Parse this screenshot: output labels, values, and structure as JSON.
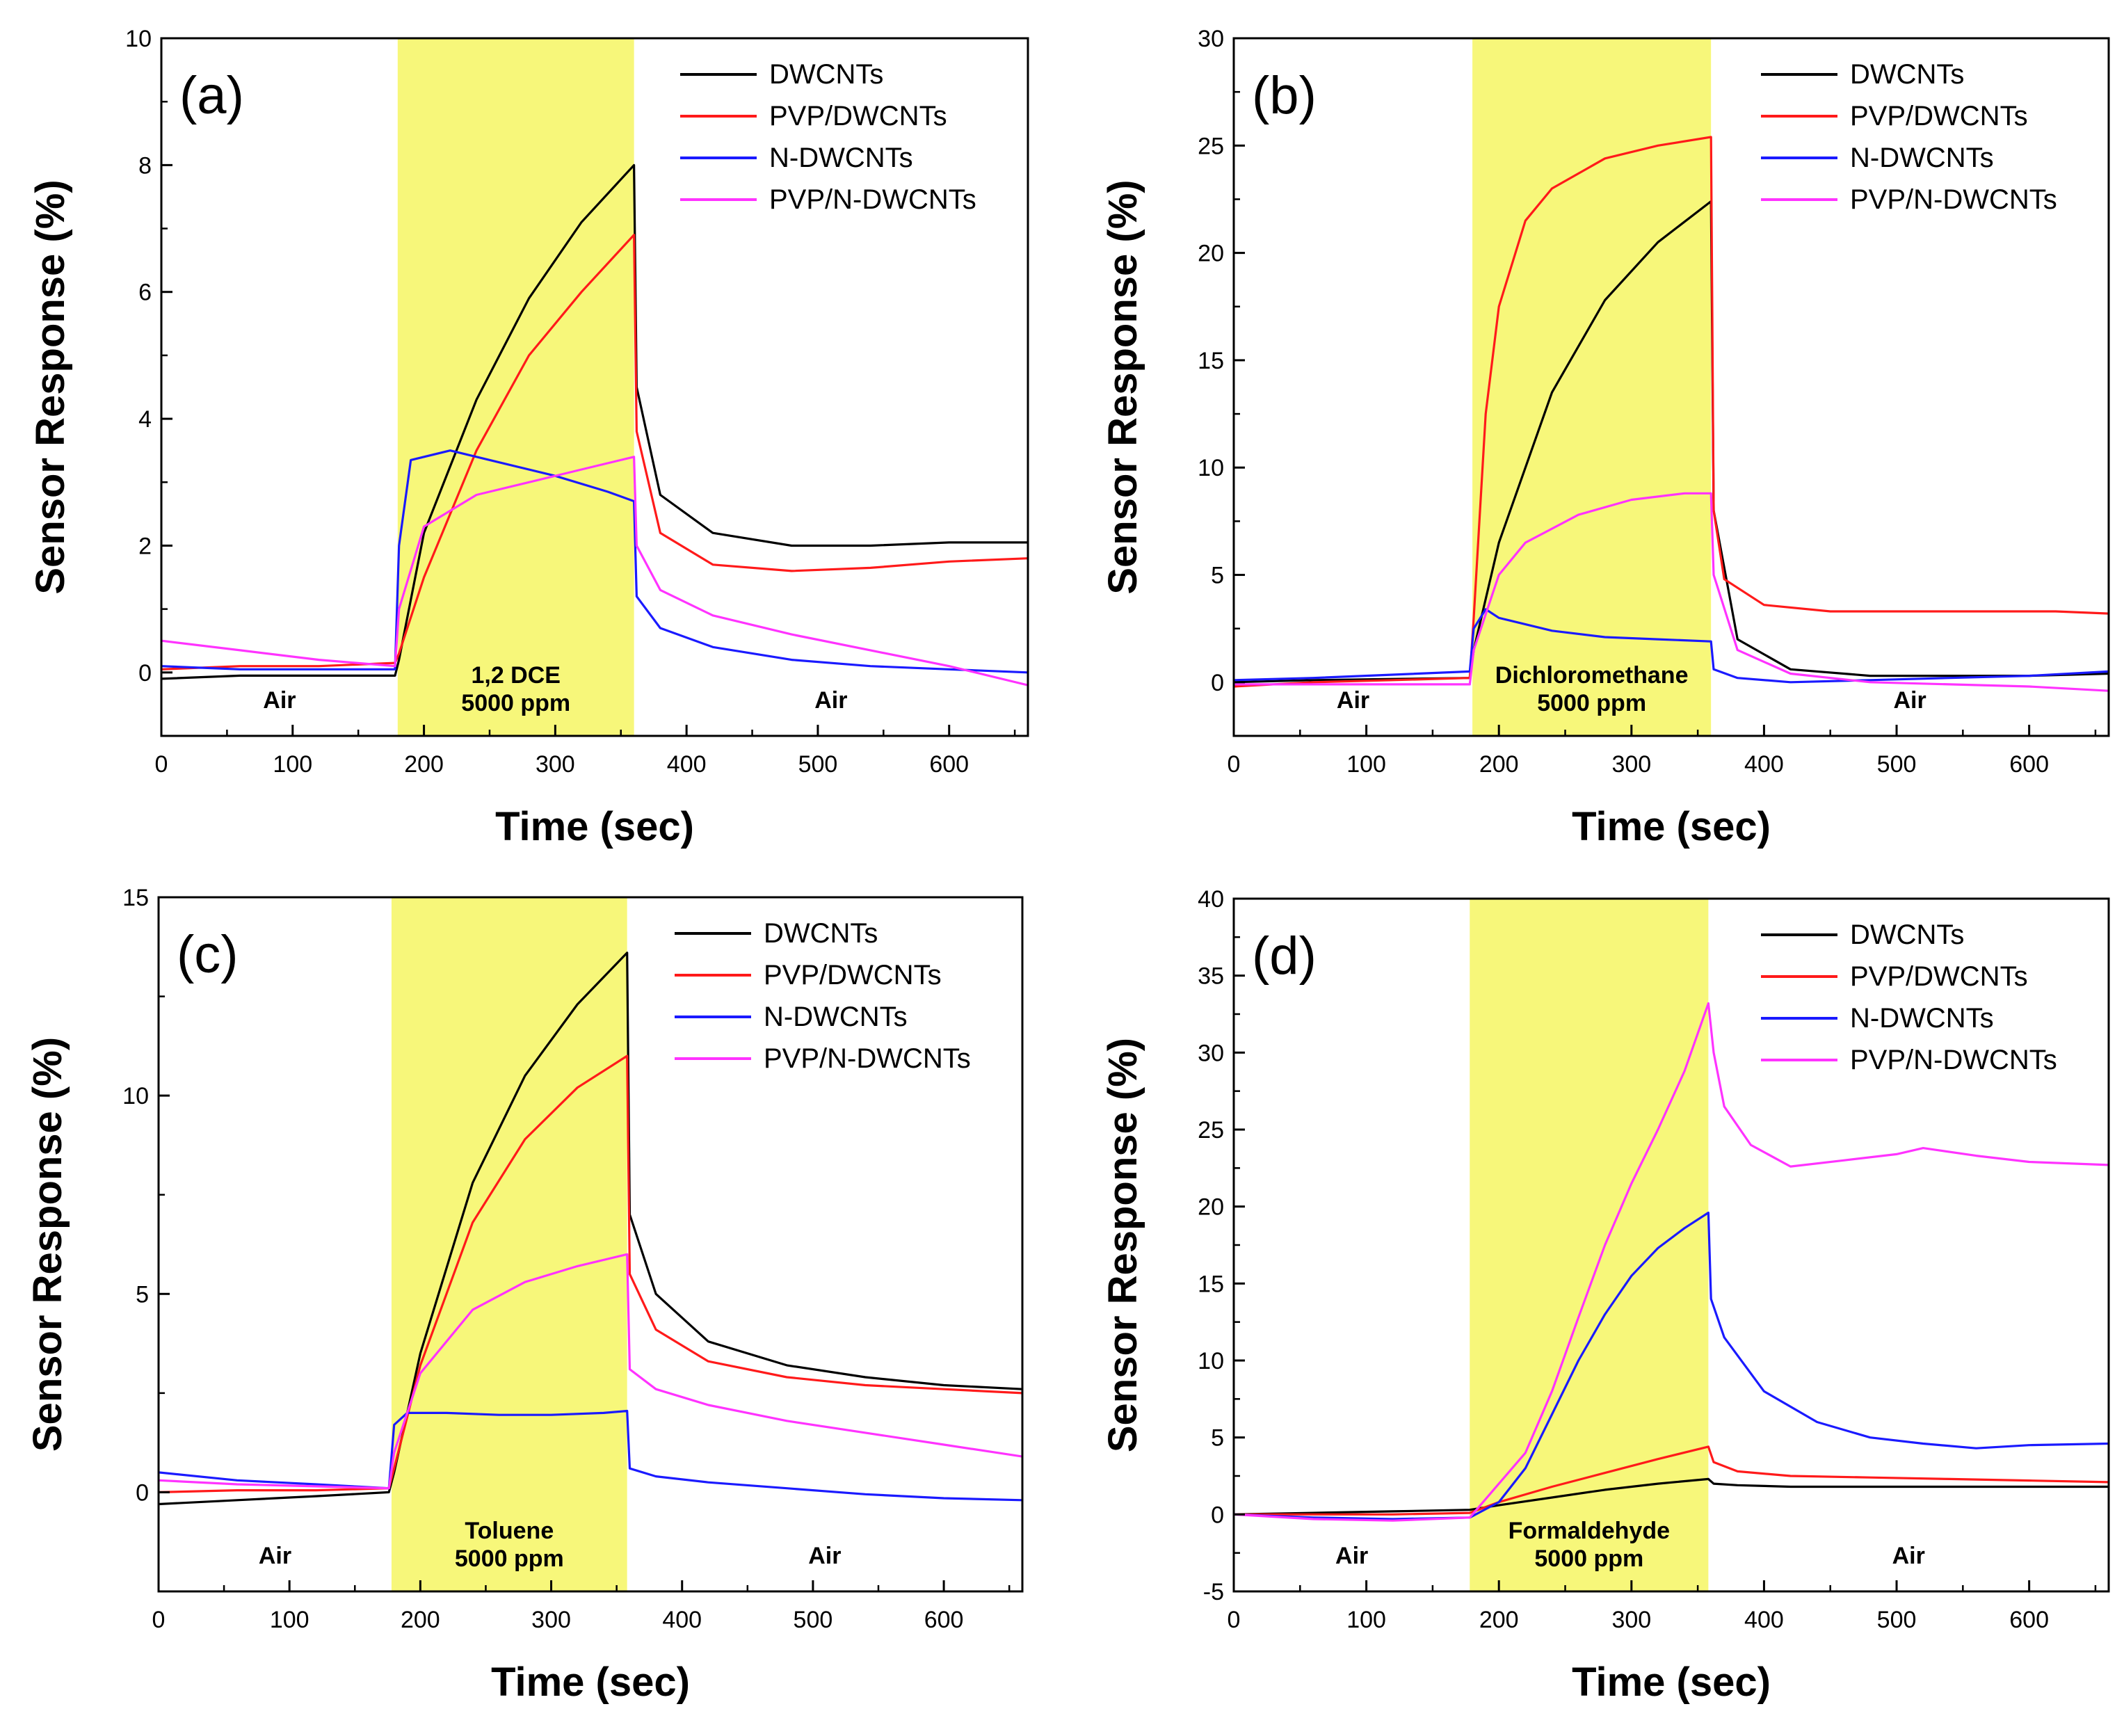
{
  "figure": {
    "common": {
      "xlabel": "Time (sec)",
      "ylabel": "Sensor Response (%)",
      "legend_position": "top-right",
      "colors": {
        "DWCNTs": "#000000",
        "PVP/DWCNTs": "#ff1a1a",
        "N-DWCNTs": "#1a1aff",
        "PVP/N-DWCNTs": "#ff33ff",
        "exposure": "#f7f77a"
      },
      "air_label": "Air"
    }
  },
  "chart_data": [
    {
      "panel": "(a)",
      "type": "line",
      "xlim": [
        0,
        660
      ],
      "ylim": [
        -1,
        10
      ],
      "xticks": [
        0,
        100,
        200,
        300,
        400,
        500,
        600
      ],
      "yticks": [
        0,
        2,
        4,
        6,
        8,
        10
      ],
      "exposure": {
        "start": 180,
        "end": 360,
        "line1": "1,2 DCE",
        "line2": "5000 ppm"
      },
      "series": [
        {
          "name": "DWCNTs",
          "x": [
            0,
            60,
            120,
            178,
            181,
            200,
            240,
            280,
            320,
            360,
            362,
            380,
            420,
            480,
            540,
            600,
            660
          ],
          "y": [
            -0.1,
            -0.05,
            -0.05,
            -0.05,
            0.2,
            2.2,
            4.3,
            5.9,
            7.1,
            8.0,
            4.5,
            2.8,
            2.2,
            2.0,
            2.0,
            2.05,
            2.05
          ]
        },
        {
          "name": "PVP/DWCNTs",
          "x": [
            0,
            60,
            120,
            178,
            181,
            200,
            240,
            280,
            320,
            360,
            362,
            380,
            420,
            480,
            540,
            600,
            660
          ],
          "y": [
            0.05,
            0.1,
            0.1,
            0.15,
            0.3,
            1.5,
            3.5,
            5.0,
            6.0,
            6.9,
            3.8,
            2.2,
            1.7,
            1.6,
            1.65,
            1.75,
            1.8
          ]
        },
        {
          "name": "N-DWCNTs",
          "x": [
            0,
            60,
            120,
            178,
            181,
            190,
            220,
            260,
            300,
            340,
            360,
            362,
            380,
            420,
            480,
            540,
            600,
            660
          ],
          "y": [
            0.1,
            0.05,
            0.05,
            0.05,
            2.0,
            3.35,
            3.5,
            3.3,
            3.1,
            2.85,
            2.7,
            1.2,
            0.7,
            0.4,
            0.2,
            0.1,
            0.05,
            0.0
          ]
        },
        {
          "name": "PVP/N-DWCNTs",
          "x": [
            0,
            60,
            120,
            178,
            181,
            200,
            240,
            280,
            320,
            360,
            362,
            380,
            420,
            480,
            540,
            600,
            660
          ],
          "y": [
            0.5,
            0.35,
            0.2,
            0.1,
            1.0,
            2.3,
            2.8,
            3.0,
            3.2,
            3.4,
            2.0,
            1.3,
            0.9,
            0.6,
            0.35,
            0.1,
            -0.2
          ]
        }
      ]
    },
    {
      "panel": "(b)",
      "type": "line",
      "xlim": [
        0,
        660
      ],
      "ylim": [
        -2.5,
        30
      ],
      "xticks": [
        0,
        100,
        200,
        300,
        400,
        500,
        600
      ],
      "yticks": [
        0,
        5,
        10,
        15,
        20,
        25,
        30
      ],
      "exposure": {
        "start": 180,
        "end": 360,
        "line1": "Dichloromethane",
        "line2": "5000 ppm"
      },
      "series": [
        {
          "name": "DWCNTs",
          "x": [
            0,
            60,
            120,
            178,
            181,
            200,
            240,
            280,
            320,
            360,
            362,
            380,
            420,
            480,
            540,
            600,
            660
          ],
          "y": [
            0.0,
            0.1,
            0.15,
            0.2,
            1.5,
            6.5,
            13.5,
            17.8,
            20.5,
            22.4,
            8.0,
            2.0,
            0.6,
            0.3,
            0.3,
            0.3,
            0.4
          ]
        },
        {
          "name": "PVP/DWCNTs",
          "x": [
            0,
            60,
            120,
            178,
            181,
            190,
            200,
            220,
            240,
            280,
            320,
            360,
            362,
            370,
            400,
            450,
            500,
            560,
            620,
            660
          ],
          "y": [
            -0.2,
            0.0,
            0.1,
            0.2,
            3.0,
            12.5,
            17.5,
            21.5,
            23.0,
            24.4,
            25.0,
            25.4,
            8.0,
            4.8,
            3.6,
            3.3,
            3.3,
            3.3,
            3.3,
            3.2
          ]
        },
        {
          "name": "N-DWCNTs",
          "x": [
            0,
            60,
            120,
            178,
            181,
            190,
            200,
            240,
            280,
            320,
            360,
            362,
            380,
            420,
            480,
            540,
            600,
            660
          ],
          "y": [
            0.1,
            0.2,
            0.35,
            0.5,
            2.5,
            3.4,
            3.0,
            2.4,
            2.1,
            2.0,
            1.9,
            0.6,
            0.2,
            0.0,
            0.1,
            0.2,
            0.3,
            0.5
          ]
        },
        {
          "name": "PVP/N-DWCNTs",
          "x": [
            0,
            60,
            120,
            178,
            181,
            200,
            220,
            260,
            300,
            340,
            360,
            362,
            380,
            420,
            480,
            540,
            600,
            660
          ],
          "y": [
            -0.1,
            -0.1,
            -0.1,
            -0.1,
            1.5,
            5.0,
            6.5,
            7.8,
            8.5,
            8.8,
            8.8,
            5.0,
            1.5,
            0.4,
            0.0,
            -0.1,
            -0.2,
            -0.4
          ]
        }
      ]
    },
    {
      "panel": "(c)",
      "type": "line",
      "xlim": [
        0,
        660
      ],
      "ylim": [
        -2.5,
        15
      ],
      "xticks": [
        0,
        100,
        200,
        300,
        400,
        500,
        600
      ],
      "yticks": [
        0,
        5,
        10,
        15
      ],
      "exposure": {
        "start": 178,
        "end": 358,
        "line1": "Toluene",
        "line2": "5000 ppm"
      },
      "series": [
        {
          "name": "DWCNTs",
          "x": [
            0,
            60,
            120,
            176,
            180,
            200,
            240,
            280,
            320,
            358,
            360,
            380,
            420,
            480,
            540,
            600,
            660
          ],
          "y": [
            -0.3,
            -0.2,
            -0.1,
            0.0,
            0.5,
            3.5,
            7.8,
            10.5,
            12.3,
            13.6,
            7.0,
            5.0,
            3.8,
            3.2,
            2.9,
            2.7,
            2.6
          ]
        },
        {
          "name": "PVP/DWCNTs",
          "x": [
            0,
            60,
            120,
            176,
            180,
            200,
            240,
            280,
            320,
            358,
            360,
            380,
            420,
            480,
            540,
            600,
            660
          ],
          "y": [
            0.0,
            0.05,
            0.05,
            0.1,
            0.6,
            3.2,
            6.8,
            8.9,
            10.2,
            11.0,
            5.5,
            4.1,
            3.3,
            2.9,
            2.7,
            2.6,
            2.5
          ]
        },
        {
          "name": "N-DWCNTs",
          "x": [
            0,
            60,
            120,
            176,
            180,
            190,
            220,
            260,
            300,
            340,
            358,
            360,
            380,
            420,
            480,
            540,
            600,
            660
          ],
          "y": [
            0.5,
            0.3,
            0.2,
            0.1,
            1.7,
            2.0,
            2.0,
            1.95,
            1.95,
            2.0,
            2.05,
            0.6,
            0.4,
            0.25,
            0.1,
            -0.05,
            -0.15,
            -0.2
          ]
        },
        {
          "name": "PVP/N-DWCNTs",
          "x": [
            0,
            60,
            120,
            176,
            180,
            200,
            240,
            280,
            320,
            358,
            360,
            380,
            420,
            480,
            540,
            600,
            660
          ],
          "y": [
            0.3,
            0.2,
            0.15,
            0.1,
            1.0,
            3.0,
            4.6,
            5.3,
            5.7,
            6.0,
            3.1,
            2.6,
            2.2,
            1.8,
            1.5,
            1.2,
            0.9
          ]
        }
      ]
    },
    {
      "panel": "(d)",
      "type": "line",
      "xlim": [
        0,
        660
      ],
      "ylim": [
        -5,
        40
      ],
      "xticks": [
        0,
        100,
        200,
        300,
        400,
        500,
        600
      ],
      "yticks": [
        -5,
        0,
        5,
        10,
        15,
        20,
        25,
        30,
        35,
        40
      ],
      "exposure": {
        "start": 178,
        "end": 358,
        "line1": "Formaldehyde",
        "line2": "5000 ppm"
      },
      "series": [
        {
          "name": "DWCNTs",
          "x": [
            0,
            60,
            120,
            178,
            200,
            240,
            280,
            320,
            358,
            362,
            380,
            420,
            480,
            540,
            600,
            660
          ],
          "y": [
            0.0,
            0.1,
            0.2,
            0.3,
            0.6,
            1.1,
            1.6,
            2.0,
            2.3,
            2.0,
            1.9,
            1.8,
            1.8,
            1.8,
            1.8,
            1.8
          ]
        },
        {
          "name": "PVP/DWCNTs",
          "x": [
            0,
            60,
            120,
            178,
            200,
            240,
            280,
            320,
            358,
            362,
            380,
            420,
            480,
            540,
            600,
            660
          ],
          "y": [
            0.0,
            0.0,
            0.0,
            0.1,
            0.8,
            1.8,
            2.7,
            3.6,
            4.4,
            3.4,
            2.8,
            2.5,
            2.4,
            2.3,
            2.2,
            2.1
          ]
        },
        {
          "name": "N-DWCNTs",
          "x": [
            0,
            60,
            120,
            178,
            200,
            220,
            240,
            260,
            280,
            300,
            320,
            340,
            358,
            360,
            370,
            400,
            440,
            480,
            520,
            560,
            600,
            660
          ],
          "y": [
            0.0,
            -0.2,
            -0.3,
            -0.2,
            0.8,
            3.0,
            6.5,
            10.0,
            13.0,
            15.5,
            17.3,
            18.6,
            19.6,
            14.0,
            11.5,
            8.0,
            6.0,
            5.0,
            4.6,
            4.3,
            4.5,
            4.6
          ]
        },
        {
          "name": "PVP/N-DWCNTs",
          "x": [
            0,
            60,
            120,
            178,
            200,
            220,
            240,
            260,
            280,
            300,
            320,
            340,
            358,
            362,
            370,
            390,
            420,
            460,
            500,
            520,
            560,
            600,
            660
          ],
          "y": [
            0.0,
            -0.3,
            -0.4,
            -0.2,
            2.0,
            4.0,
            8.0,
            12.8,
            17.5,
            21.5,
            25.0,
            28.8,
            33.2,
            30.0,
            26.5,
            24.0,
            22.6,
            23.0,
            23.4,
            23.8,
            23.3,
            22.9,
            22.7
          ]
        }
      ]
    }
  ]
}
